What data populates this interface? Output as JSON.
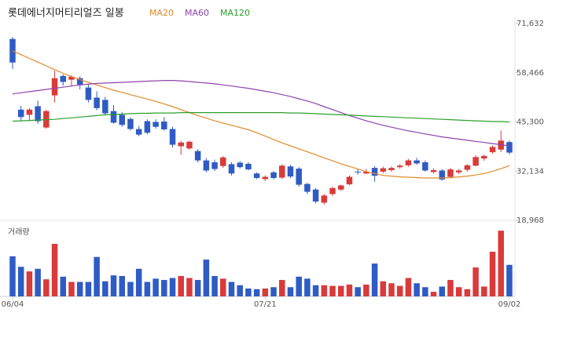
{
  "chart_data": {
    "type": "candlestick",
    "title": "롯데에너지머티리얼즈 일봉",
    "volume_label": "거래량",
    "up_color": "#d93a3a",
    "down_color": "#2f5bc4",
    "categories": [
      "06/04",
      null,
      null,
      null,
      null,
      null,
      null,
      null,
      null,
      null,
      null,
      null,
      null,
      null,
      null,
      null,
      null,
      null,
      null,
      null,
      null,
      null,
      null,
      null,
      null,
      null,
      null,
      null,
      null,
      null,
      "07/21",
      null,
      null,
      null,
      null,
      null,
      null,
      null,
      null,
      null,
      null,
      null,
      null,
      null,
      null,
      null,
      null,
      null,
      null,
      null,
      null,
      null,
      null,
      null,
      null,
      null,
      null,
      null,
      null,
      "09/02"
    ],
    "open": [
      67500,
      48600,
      47200,
      49500,
      43800,
      52400,
      57600,
      56600,
      57000,
      54500,
      51800,
      51200,
      48200,
      47200,
      46100,
      43400,
      45500,
      45300,
      45400,
      43400,
      38800,
      38200,
      37500,
      35000,
      34500,
      33500,
      34000,
      34400,
      34100,
      31500,
      30000,
      31800,
      30400,
      33400,
      32800,
      28700,
      27200,
      23700,
      26000,
      27200,
      28600,
      32000,
      31500,
      33000,
      32000,
      32400,
      33200,
      33700,
      35000,
      34500,
      31900,
      32300,
      30600,
      31800,
      32500,
      33600,
      35500,
      37200,
      37900,
      39900
    ],
    "high": [
      68000,
      49600,
      49000,
      51000,
      48600,
      59000,
      58000,
      57800,
      57500,
      55300,
      53500,
      52000,
      49800,
      48000,
      46500,
      44200,
      46000,
      46000,
      46600,
      44000,
      40200,
      40300,
      38000,
      35600,
      35200,
      36200,
      34500,
      34800,
      34500,
      31800,
      31000,
      32200,
      34000,
      33800,
      33200,
      29000,
      27600,
      26000,
      28000,
      28500,
      31000,
      32600,
      32700,
      33500,
      33300,
      33400,
      34000,
      35400,
      35700,
      35000,
      32900,
      32700,
      33000,
      32700,
      34000,
      36400,
      36600,
      39000,
      43000,
      40400
    ],
    "low": [
      59500,
      45500,
      45500,
      44800,
      43500,
      50500,
      55000,
      54800,
      54000,
      50500,
      48400,
      47000,
      44800,
      44000,
      43000,
      41500,
      42000,
      43500,
      43000,
      38500,
      36500,
      37800,
      34500,
      31800,
      32200,
      33000,
      31000,
      32800,
      32300,
      30000,
      29500,
      29900,
      30000,
      30300,
      28000,
      26000,
      23500,
      23200,
      25500,
      26800,
      28300,
      31200,
      31300,
      29300,
      31600,
      32000,
      32800,
      33300,
      33800,
      32000,
      31500,
      29600,
      30200,
      31300,
      32000,
      33400,
      34900,
      36800,
      37200,
      36600
    ],
    "close": [
      61200,
      46600,
      48600,
      45500,
      48200,
      57000,
      56000,
      57400,
      55300,
      51200,
      49000,
      47600,
      45100,
      44500,
      43400,
      41900,
      42400,
      44000,
      43300,
      39200,
      39800,
      40000,
      35000,
      32300,
      32700,
      35800,
      31500,
      33200,
      32600,
      30300,
      30600,
      30300,
      33600,
      30700,
      28500,
      26600,
      24000,
      25600,
      27600,
      28300,
      30600,
      31800,
      32000,
      30900,
      32900,
      33000,
      33600,
      35000,
      34200,
      32300,
      32400,
      29900,
      32600,
      32300,
      33700,
      35900,
      36200,
      38600,
      40300,
      37100
    ],
    "volume": [
      61,
      45,
      38,
      42,
      26,
      80,
      30,
      22,
      22,
      22,
      60,
      23,
      32,
      31,
      22,
      42,
      22,
      27,
      25,
      28,
      31,
      28,
      25,
      56,
      31,
      27,
      22,
      17,
      12,
      11,
      12,
      14,
      25,
      14,
      30,
      27,
      17,
      17,
      16,
      16,
      18,
      14,
      18,
      50,
      23,
      20,
      16,
      28,
      20,
      14,
      7,
      15,
      25,
      14,
      11,
      44,
      15,
      68,
      100,
      48
    ],
    "volume_ylim": [
      0,
      105
    ],
    "series": [
      {
        "name": "MA20",
        "color": "#e08a2b",
        "values": [
          64300,
          63300,
          62300,
          61300,
          60300,
          59300,
          58300,
          57400,
          56600,
          55900,
          55200,
          54500,
          53800,
          53200,
          52600,
          52000,
          51400,
          50800,
          50100,
          49400,
          48600,
          47800,
          47000,
          46300,
          45600,
          45000,
          44400,
          43800,
          43200,
          42400,
          41500,
          40600,
          39700,
          38900,
          38100,
          37300,
          36500,
          35700,
          34900,
          34100,
          33400,
          32700,
          32000,
          31500,
          31000,
          30800,
          30600,
          30500,
          30400,
          30300,
          30300,
          30300,
          30400,
          30600,
          30800,
          31100,
          31500,
          32100,
          32800,
          33600
        ]
      },
      {
        "name": "MA60",
        "color": "#8e44ad",
        "values": [
          52800,
          53100,
          53400,
          53700,
          54000,
          54300,
          54600,
          54900,
          55200,
          55400,
          55600,
          55700,
          55800,
          55900,
          56000,
          56100,
          56200,
          56300,
          56400,
          56400,
          56300,
          56100,
          55900,
          55700,
          55500,
          55200,
          54900,
          54600,
          54300,
          53900,
          53500,
          53100,
          52600,
          52100,
          51500,
          50900,
          50200,
          49400,
          48600,
          47800,
          47000,
          46300,
          45600,
          45000,
          44400,
          43900,
          43400,
          42900,
          42500,
          42100,
          41700,
          41300,
          41000,
          40700,
          40400,
          40100,
          39800,
          39500,
          39200,
          38900
        ]
      },
      {
        "name": "MA120",
        "color": "#2ca02c",
        "values": [
          45500,
          45600,
          45700,
          45800,
          45900,
          46000,
          46200,
          46400,
          46600,
          46800,
          47000,
          47200,
          47300,
          47400,
          47500,
          47600,
          47600,
          47700,
          47700,
          47700,
          47800,
          47800,
          47800,
          47800,
          47800,
          47800,
          47800,
          47800,
          47800,
          47800,
          47800,
          47800,
          47800,
          47700,
          47700,
          47600,
          47500,
          47400,
          47300,
          47200,
          47100,
          47000,
          46900,
          46800,
          46700,
          46600,
          46500,
          46400,
          46300,
          46200,
          46100,
          46000,
          45900,
          45800,
          45700,
          45600,
          45500,
          45400,
          45400,
          45300
        ]
      }
    ],
    "ylim": [
      18968,
      71632
    ],
    "yticks": [
      {
        "value": 71632,
        "label": "71,632"
      },
      {
        "value": 58466,
        "label": "58,466"
      },
      {
        "value": 45300,
        "label": "45,300"
      },
      {
        "value": 32134,
        "label": "32,134"
      },
      {
        "value": 18968,
        "label": "18,968"
      }
    ]
  }
}
